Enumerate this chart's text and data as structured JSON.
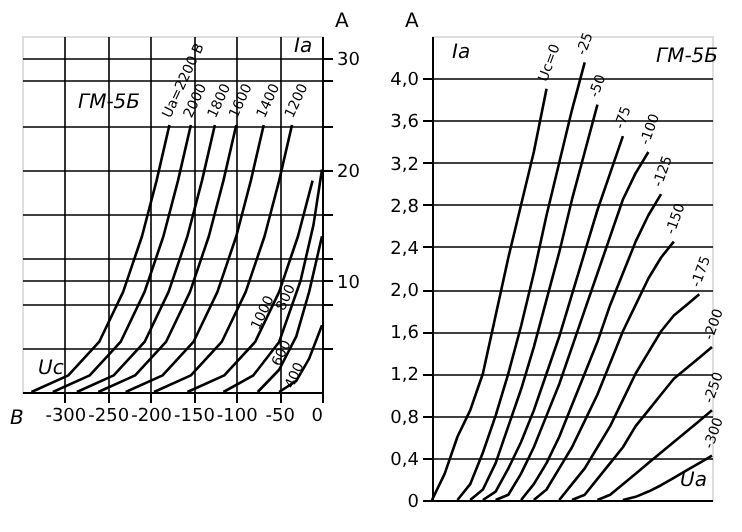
{
  "chart_data": [
    {
      "type": "line",
      "ylabel": "A",
      "xlim": [
        -350,
        0
      ],
      "ylim": [
        0,
        32
      ],
      "xticks": [
        -300,
        -250,
        -200,
        -150,
        -100,
        -50,
        0
      ],
      "yticks": [
        {
          "value": 4,
          "label": null
        },
        {
          "value": 8,
          "label": null
        },
        10,
        {
          "value": 12,
          "label": null
        },
        {
          "value": 16,
          "label": null
        },
        20,
        {
          "value": 24,
          "label": null
        },
        {
          "value": 28,
          "label": null
        },
        30
      ],
      "grid": true,
      "legend": false,
      "annotations": [
        "ГМ-5Б",
        "Iа",
        "Uс",
        "В"
      ],
      "series": [
        {
          "name": "Uа=2200 В",
          "color": "#000000",
          "x": [
            -339,
            -296,
            -260,
            -232,
            -210,
            -193,
            -178
          ],
          "values": [
            0,
            1.5,
            4.5,
            9,
            14,
            19,
            24
          ]
        },
        {
          "name": "2000",
          "color": "#000000",
          "x": [
            -314,
            -271,
            -235,
            -207,
            -185,
            -168,
            -153
          ],
          "values": [
            0,
            1.5,
            4.5,
            9,
            14,
            19,
            24
          ]
        },
        {
          "name": "1800",
          "color": "#000000",
          "x": [
            -286,
            -243,
            -207,
            -179,
            -157,
            -140,
            -125
          ],
          "values": [
            0,
            1.5,
            4.5,
            9,
            14,
            19,
            24
          ]
        },
        {
          "name": "1600",
          "color": "#000000",
          "x": [
            -261,
            -218,
            -182,
            -154,
            -132,
            -115,
            -100
          ],
          "values": [
            0,
            1.5,
            4.5,
            9,
            14,
            19,
            24
          ]
        },
        {
          "name": "1400",
          "color": "#000000",
          "x": [
            -229,
            -186,
            -150,
            -122,
            -100,
            -83,
            -68
          ],
          "values": [
            0,
            1.5,
            4.5,
            9,
            14,
            19,
            24
          ]
        },
        {
          "name": "1200",
          "color": "#000000",
          "x": [
            -196,
            -153,
            -117,
            -89,
            -67,
            -50,
            -35
          ],
          "values": [
            0,
            1.5,
            4.5,
            9,
            14,
            19,
            24
          ]
        },
        {
          "name": "1000",
          "color": "#000000",
          "x": [
            -157,
            -114,
            -78,
            -50,
            -28,
            -11
          ],
          "values": [
            0,
            1.5,
            4.5,
            9,
            14,
            19
          ]
        },
        {
          "name": "800",
          "color": "#000000",
          "x": [
            -115,
            -80,
            -50,
            -25,
            -10,
            0
          ],
          "values": [
            0,
            1.5,
            4.5,
            10,
            15,
            20
          ]
        },
        {
          "name": "600",
          "color": "#000000",
          "x": [
            -75,
            -50,
            -30,
            -15,
            0
          ],
          "values": [
            0,
            2,
            5,
            9,
            14
          ]
        },
        {
          "name": "400",
          "color": "#000000",
          "x": [
            -50,
            -30,
            -15,
            0
          ],
          "values": [
            0,
            1,
            3,
            6
          ]
        }
      ]
    },
    {
      "type": "line",
      "ylabel": "A",
      "ylim": [
        0,
        4.4
      ],
      "yticks": [
        {
          "value": 0,
          "label": "0"
        },
        {
          "value": 0.4,
          "label": "0,4"
        },
        {
          "value": 0.8,
          "label": "0,8"
        },
        {
          "value": 1.2,
          "label": "1,2"
        },
        {
          "value": 1.6,
          "label": "1,6"
        },
        {
          "value": 2,
          "label": "2,0"
        },
        {
          "value": 2.4,
          "label": "2,4"
        },
        {
          "value": 2.8,
          "label": "2,8"
        },
        {
          "value": 3.2,
          "label": "3,2"
        },
        {
          "value": 3.6,
          "label": "3,6"
        },
        {
          "value": 4,
          "label": "4,0"
        }
      ],
      "tick_labels": "y",
      "grid": "y",
      "legend": false,
      "annotations": [
        "ГМ-5Б",
        "Iа",
        "Uа"
      ],
      "categories": [
        null,
        null,
        null,
        null,
        null,
        null,
        null,
        null,
        null,
        null,
        null,
        null,
        null,
        null,
        null,
        null,
        null,
        null,
        null,
        null,
        null,
        null,
        null
      ],
      "series": [
        {
          "name": "Uс=0",
          "color": "#000000",
          "values": [
            0,
            0.25,
            0.6,
            0.85,
            1.2,
            1.75,
            2.3,
            2.8,
            3.3,
            3.9,
            null,
            null,
            null,
            null,
            null,
            null,
            null,
            null,
            null,
            null,
            null,
            null,
            null
          ]
        },
        {
          "name": "-25",
          "color": "#000000",
          "values": [
            null,
            null,
            0,
            0.15,
            0.45,
            0.8,
            1.2,
            1.65,
            2.15,
            2.7,
            3.2,
            3.7,
            4.15,
            null,
            null,
            null,
            null,
            null,
            null,
            null,
            null,
            null,
            null
          ]
        },
        {
          "name": "-50",
          "color": "#000000",
          "values": [
            null,
            null,
            null,
            0,
            0.1,
            0.35,
            0.7,
            1.05,
            1.45,
            1.9,
            2.35,
            2.85,
            3.3,
            3.75,
            null,
            null,
            null,
            null,
            null,
            null,
            null,
            null,
            null
          ]
        },
        {
          "name": "-75",
          "color": "#000000",
          "values": [
            null,
            null,
            null,
            null,
            0,
            0.08,
            0.3,
            0.55,
            0.85,
            1.2,
            1.55,
            1.95,
            2.35,
            2.75,
            3.1,
            3.45,
            null,
            null,
            null,
            null,
            null,
            null,
            null
          ]
        },
        {
          "name": "-100",
          "color": "#000000",
          "values": [
            null,
            null,
            null,
            null,
            null,
            0,
            0.05,
            0.25,
            0.5,
            0.8,
            1.1,
            1.45,
            1.8,
            2.15,
            2.5,
            2.85,
            3.1,
            3.3,
            null,
            null,
            null,
            null,
            null
          ]
        },
        {
          "name": "-125",
          "color": "#000000",
          "values": [
            null,
            null,
            null,
            null,
            null,
            null,
            null,
            0,
            0.15,
            0.35,
            0.6,
            0.9,
            1.2,
            1.5,
            1.85,
            2.15,
            2.45,
            2.7,
            2.9,
            null,
            null,
            null,
            null
          ]
        },
        {
          "name": "-150",
          "color": "#000000",
          "values": [
            null,
            null,
            null,
            null,
            null,
            null,
            null,
            null,
            0,
            0.1,
            0.3,
            0.5,
            0.75,
            1.0,
            1.3,
            1.6,
            1.85,
            2.1,
            2.3,
            2.45,
            null,
            null,
            null
          ]
        },
        {
          "name": "-175",
          "color": "#000000",
          "values": [
            null,
            null,
            null,
            null,
            null,
            null,
            null,
            null,
            null,
            null,
            0,
            0.15,
            0.3,
            0.5,
            0.7,
            0.95,
            1.2,
            1.4,
            1.6,
            1.75,
            1.85,
            1.95,
            null
          ]
        },
        {
          "name": "-200",
          "color": "#000000",
          "values": [
            null,
            null,
            null,
            null,
            null,
            null,
            null,
            null,
            null,
            null,
            null,
            0,
            0.05,
            0.2,
            0.35,
            0.5,
            0.7,
            0.85,
            1.0,
            1.15,
            1.25,
            1.35,
            1.45
          ]
        },
        {
          "name": "-250",
          "color": "#000000",
          "values": [
            null,
            null,
            null,
            null,
            null,
            null,
            null,
            null,
            null,
            null,
            null,
            null,
            null,
            0,
            0.05,
            0.15,
            0.25,
            0.35,
            0.45,
            0.55,
            0.65,
            0.75,
            0.85
          ]
        },
        {
          "name": "-300",
          "color": "#000000",
          "values": [
            null,
            null,
            null,
            null,
            null,
            null,
            null,
            null,
            null,
            null,
            null,
            null,
            null,
            null,
            null,
            0,
            0.03,
            0.08,
            0.14,
            0.21,
            0.28,
            0.35,
            0.42
          ]
        }
      ]
    }
  ]
}
